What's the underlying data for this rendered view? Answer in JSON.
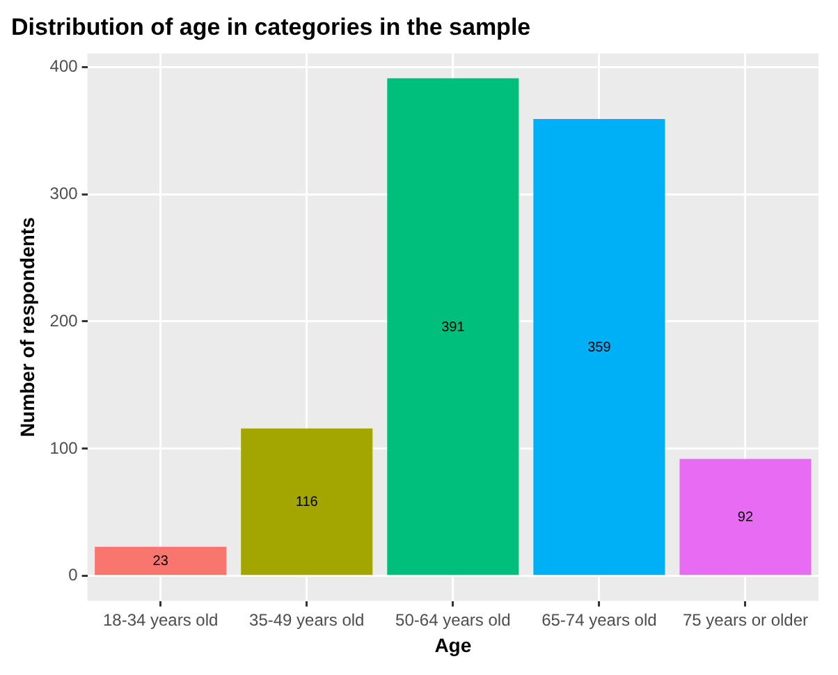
{
  "chart_data": {
    "type": "bar",
    "title": "Distribution of age in categories in the sample",
    "xlabel": "Age",
    "ylabel": "Number of respondents",
    "categories": [
      "18-34 years old",
      "35-49 years old",
      "50-64 years old",
      "65-74 years old",
      "75 years or older"
    ],
    "values": [
      23,
      116,
      391,
      359,
      92
    ],
    "colors": [
      "#f8766d",
      "#a3a500",
      "#00bf7d",
      "#00b0f6",
      "#e76bf3"
    ],
    "ylim": [
      -19.55,
      410.55
    ],
    "yticks": [
      0,
      100,
      200,
      300,
      400
    ],
    "grid": true,
    "data_labels": true,
    "legend": false
  }
}
